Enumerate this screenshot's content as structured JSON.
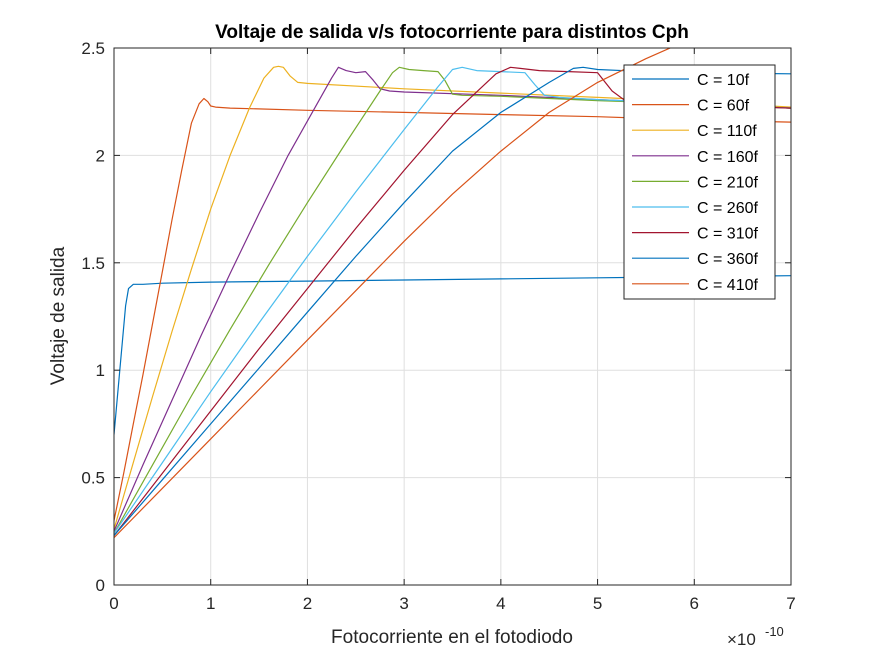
{
  "chart_data": {
    "type": "line",
    "title": "Voltaje de salida v/s fotocorriente para distintos Cph",
    "xlabel": "Fotocorriente en el fotodiodo",
    "ylabel": "Voltaje de salida",
    "x_exponent_base": "×10",
    "x_exponent_power": "-10",
    "xlim": [
      0,
      7
    ],
    "ylim": [
      0,
      2.5
    ],
    "xticks": [
      0,
      1,
      2,
      3,
      4,
      5,
      6,
      7
    ],
    "xtick_labels": [
      "0",
      "1",
      "2",
      "3",
      "4",
      "5",
      "6",
      "7"
    ],
    "yticks": [
      0,
      0.5,
      1,
      1.5,
      2,
      2.5
    ],
    "ytick_labels": [
      "0",
      "0.5",
      "1",
      "1.5",
      "2",
      "2.5"
    ],
    "grid": true,
    "legend_position": "top-right",
    "series": [
      {
        "name": "C = 10f",
        "color": "#0072BD",
        "x": [
          0,
          0.03,
          0.06,
          0.09,
          0.12,
          0.15,
          0.2,
          0.3,
          0.5,
          1,
          2,
          3,
          4,
          5,
          6,
          7
        ],
        "y": [
          0.7,
          0.85,
          1.0,
          1.15,
          1.3,
          1.38,
          1.4,
          1.4,
          1.405,
          1.41,
          1.415,
          1.42,
          1.425,
          1.43,
          1.435,
          1.44
        ]
      },
      {
        "name": "C = 60f",
        "color": "#D95319",
        "x": [
          0,
          0.1,
          0.2,
          0.3,
          0.4,
          0.5,
          0.6,
          0.7,
          0.8,
          0.88,
          0.93,
          0.97,
          1.0,
          1.05,
          1.2,
          2,
          3,
          4,
          5,
          6,
          7
        ],
        "y": [
          0.3,
          0.52,
          0.75,
          0.98,
          1.22,
          1.46,
          1.7,
          1.93,
          2.15,
          2.24,
          2.265,
          2.25,
          2.23,
          2.225,
          2.22,
          2.21,
          2.2,
          2.19,
          2.18,
          2.165,
          2.155
        ]
      },
      {
        "name": "C = 110f",
        "color": "#EDB120",
        "x": [
          0,
          0.2,
          0.4,
          0.6,
          0.8,
          1.0,
          1.2,
          1.4,
          1.55,
          1.65,
          1.7,
          1.75,
          1.82,
          1.9,
          2.0,
          3,
          4,
          5,
          6,
          7
        ],
        "y": [
          0.26,
          0.57,
          0.88,
          1.18,
          1.47,
          1.75,
          2.0,
          2.22,
          2.36,
          2.41,
          2.415,
          2.41,
          2.37,
          2.34,
          2.335,
          2.31,
          2.29,
          2.27,
          2.25,
          2.225
        ]
      },
      {
        "name": "C = 160f",
        "color": "#7E2F8E",
        "x": [
          0,
          0.3,
          0.6,
          0.9,
          1.2,
          1.5,
          1.8,
          2.1,
          2.25,
          2.32,
          2.4,
          2.5,
          2.6,
          2.68,
          2.75,
          2.85,
          3,
          4,
          5,
          6,
          7
        ],
        "y": [
          0.25,
          0.56,
          0.86,
          1.16,
          1.45,
          1.73,
          2.0,
          2.24,
          2.36,
          2.41,
          2.395,
          2.385,
          2.39,
          2.35,
          2.31,
          2.3,
          2.295,
          2.28,
          2.26,
          2.24,
          2.22
        ]
      },
      {
        "name": "C = 210f",
        "color": "#77AC30",
        "x": [
          0,
          0.4,
          0.8,
          1.2,
          1.6,
          2.0,
          2.4,
          2.75,
          2.88,
          2.95,
          3.05,
          3.2,
          3.35,
          3.42,
          3.5,
          3.6,
          4,
          5,
          6,
          7
        ],
        "y": [
          0.24,
          0.56,
          0.88,
          1.19,
          1.49,
          1.78,
          2.06,
          2.3,
          2.385,
          2.41,
          2.4,
          2.395,
          2.39,
          2.35,
          2.285,
          2.28,
          2.275,
          2.255,
          2.24,
          2.22
        ]
      },
      {
        "name": "C = 260f",
        "color": "#4DBEEE",
        "x": [
          0,
          0.5,
          1.0,
          1.5,
          2.0,
          2.5,
          3.0,
          3.35,
          3.5,
          3.6,
          3.75,
          4.0,
          4.25,
          4.35,
          4.45,
          4.6,
          5,
          6,
          7
        ],
        "y": [
          0.24,
          0.57,
          0.9,
          1.22,
          1.53,
          1.83,
          2.12,
          2.32,
          2.4,
          2.41,
          2.395,
          2.39,
          2.385,
          2.33,
          2.28,
          2.27,
          2.26,
          2.24,
          2.22
        ]
      },
      {
        "name": "C = 310f",
        "color": "#A2142F",
        "x": [
          0,
          0.5,
          1.0,
          1.5,
          2.0,
          2.5,
          3.0,
          3.5,
          3.95,
          4.1,
          4.2,
          4.4,
          4.7,
          5.0,
          5.15,
          5.3,
          5.5,
          6,
          7
        ],
        "y": [
          0.23,
          0.52,
          0.81,
          1.1,
          1.38,
          1.66,
          1.93,
          2.19,
          2.38,
          2.41,
          2.405,
          2.395,
          2.39,
          2.385,
          2.3,
          2.25,
          2.245,
          2.235,
          2.22
        ]
      },
      {
        "name": "C = 360f",
        "color": "#0072BD",
        "x": [
          0,
          0.5,
          1.0,
          1.5,
          2.0,
          2.5,
          3.0,
          3.5,
          4.0,
          4.5,
          4.75,
          4.85,
          5.0,
          5.5,
          6,
          7
        ],
        "y": [
          0.23,
          0.49,
          0.75,
          1.01,
          1.27,
          1.53,
          1.78,
          2.02,
          2.2,
          2.34,
          2.405,
          2.41,
          2.4,
          2.39,
          2.385,
          2.38
        ]
      },
      {
        "name": "C = 410f",
        "color": "#D95319",
        "x": [
          0,
          0.5,
          1.0,
          1.5,
          2.0,
          2.5,
          3.0,
          3.5,
          4.0,
          4.5,
          5.0,
          5.5,
          6.0,
          6.5,
          7.0
        ],
        "y": [
          0.22,
          0.45,
          0.68,
          0.91,
          1.14,
          1.37,
          1.6,
          1.82,
          2.02,
          2.2,
          2.34,
          2.45,
          2.55,
          2.64,
          2.72
        ]
      }
    ]
  }
}
